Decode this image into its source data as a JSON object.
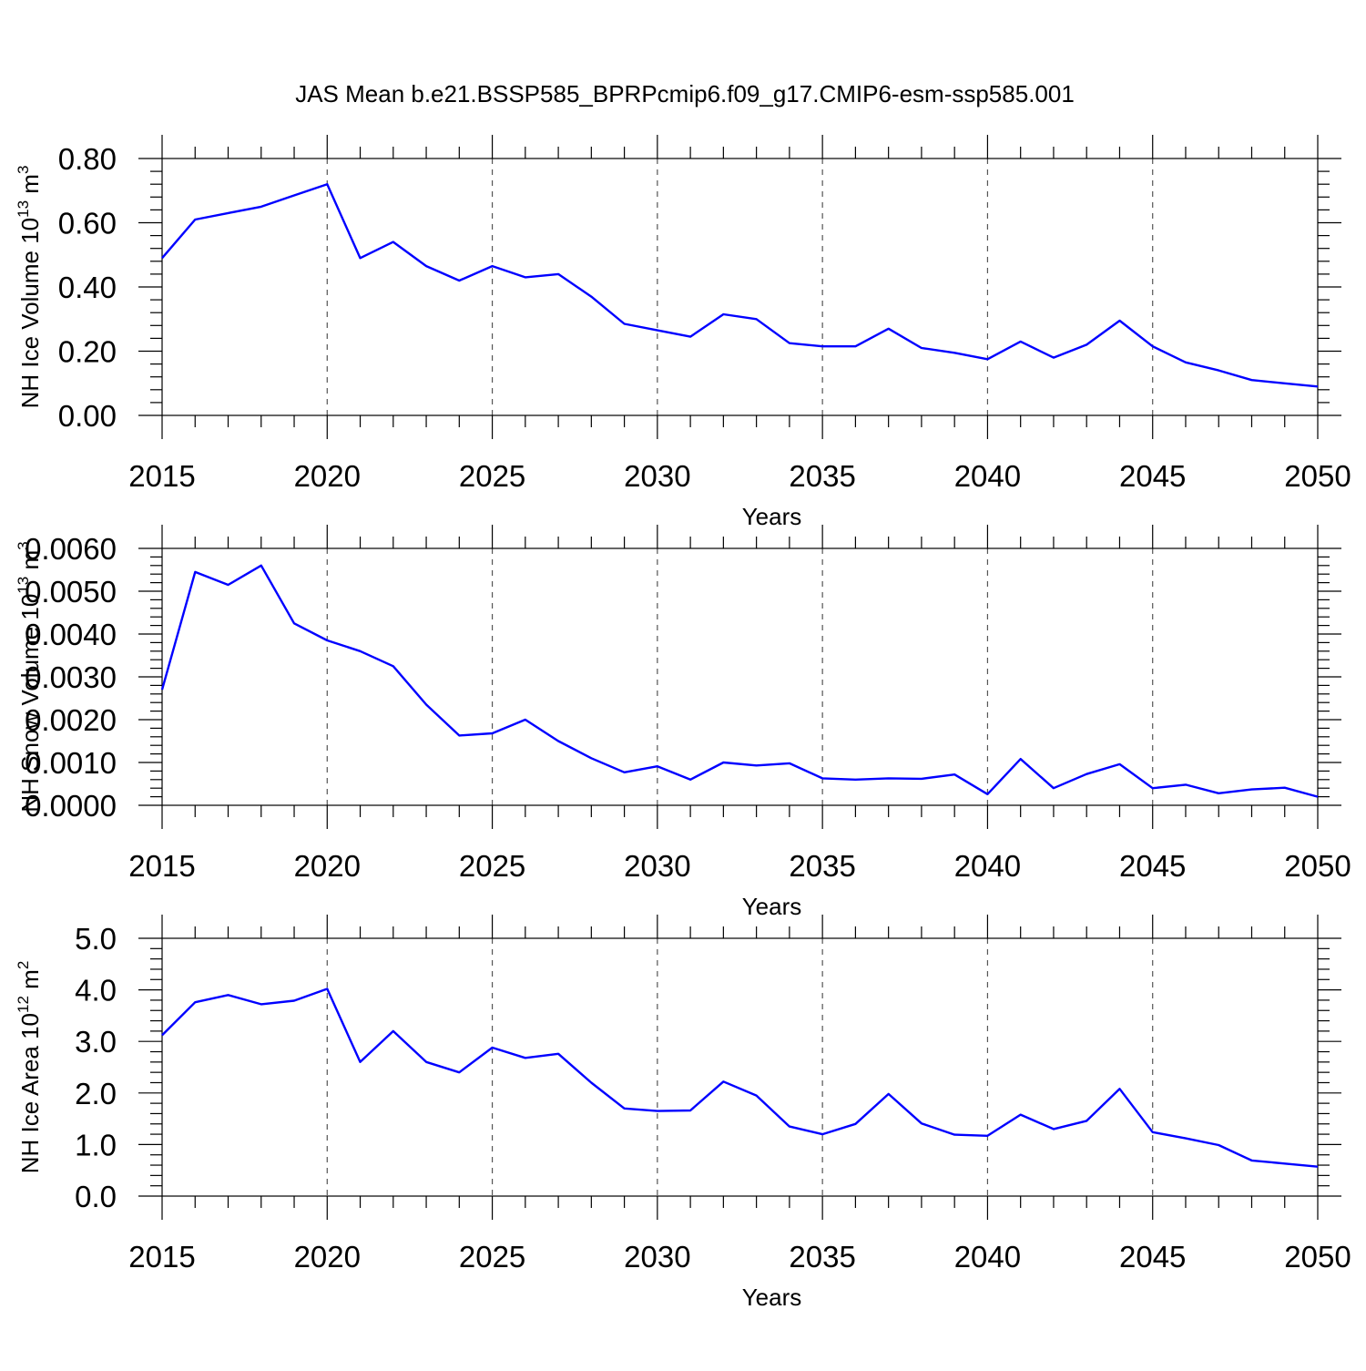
{
  "title": "JAS Mean b.e21.BSSP585_BPRPcmip6.f09_g17.CMIP6-esm-ssp585.001",
  "line_color": "#0000ff",
  "chart_data": [
    {
      "type": "line",
      "title": "JAS Mean b.e21.BSSP585_BPRPcmip6.f09_g17.CMIP6-esm-ssp585.001",
      "xlabel": "Years",
      "ylabel": "NH Ice Volume 10",
      "ylabel_sup": "13",
      "ylabel_unit": "m",
      "ylabel_unit_sup": "3",
      "xlim": [
        2015,
        2050
      ],
      "ylim": [
        0,
        0.8
      ],
      "yticks": [
        "0.00",
        "0.20",
        "0.40",
        "0.60",
        "0.80"
      ],
      "xticks": [
        "2015",
        "2020",
        "2025",
        "2030",
        "2035",
        "2040",
        "2045",
        "2050"
      ],
      "grid": "vertical dashed at major x ticks",
      "x": [
        2015,
        2016,
        2017,
        2018,
        2019,
        2020,
        2021,
        2022,
        2023,
        2024,
        2025,
        2026,
        2027,
        2028,
        2029,
        2030,
        2031,
        2032,
        2033,
        2034,
        2035,
        2036,
        2037,
        2038,
        2039,
        2040,
        2041,
        2042,
        2043,
        2044,
        2045,
        2046,
        2047,
        2048,
        2049,
        2050
      ],
      "values": [
        0.49,
        0.61,
        0.63,
        0.65,
        0.685,
        0.72,
        0.49,
        0.54,
        0.465,
        0.42,
        0.465,
        0.43,
        0.44,
        0.37,
        0.285,
        0.265,
        0.245,
        0.315,
        0.3,
        0.225,
        0.215,
        0.215,
        0.27,
        0.21,
        0.195,
        0.175,
        0.23,
        0.18,
        0.22,
        0.295,
        0.215,
        0.165,
        0.14,
        0.11,
        0.1,
        0.09
      ]
    },
    {
      "type": "line",
      "xlabel": "Years",
      "ylabel": "NH Snow Volume 10",
      "ylabel_sup": "13",
      "ylabel_unit": "m",
      "ylabel_unit_sup": "3",
      "xlim": [
        2015,
        2050
      ],
      "ylim": [
        0,
        0.006
      ],
      "yticks": [
        "0.0000",
        "0.0010",
        "0.0020",
        "0.0030",
        "0.0040",
        "0.0050",
        "0.0060"
      ],
      "xticks": [
        "2015",
        "2020",
        "2025",
        "2030",
        "2035",
        "2040",
        "2045",
        "2050"
      ],
      "grid": "vertical dashed at major x ticks",
      "x": [
        2015,
        2016,
        2017,
        2018,
        2019,
        2020,
        2021,
        2022,
        2023,
        2024,
        2025,
        2026,
        2027,
        2028,
        2029,
        2030,
        2031,
        2032,
        2033,
        2034,
        2035,
        2036,
        2037,
        2038,
        2039,
        2040,
        2041,
        2042,
        2043,
        2044,
        2045,
        2046,
        2047,
        2048,
        2049,
        2050
      ],
      "values": [
        0.0027,
        0.00545,
        0.00515,
        0.0056,
        0.00425,
        0.00385,
        0.0036,
        0.00325,
        0.00235,
        0.00163,
        0.00168,
        0.002,
        0.0015,
        0.0011,
        0.00077,
        0.00091,
        0.0006,
        0.001,
        0.00093,
        0.00098,
        0.00063,
        0.0006,
        0.00063,
        0.00062,
        0.00072,
        0.00026,
        0.00108,
        0.0004,
        0.00073,
        0.00096,
        0.0004,
        0.00048,
        0.00028,
        0.00037,
        0.00041,
        0.0002
      ]
    },
    {
      "type": "line",
      "xlabel": "Years",
      "ylabel": "NH Ice Area 10",
      "ylabel_sup": "12",
      "ylabel_unit": "m",
      "ylabel_unit_sup": "2",
      "xlim": [
        2015,
        2050
      ],
      "ylim": [
        0,
        5
      ],
      "yticks": [
        "0.0",
        "1.0",
        "2.0",
        "3.0",
        "4.0",
        "5.0"
      ],
      "xticks": [
        "2015",
        "2020",
        "2025",
        "2030",
        "2035",
        "2040",
        "2045",
        "2050"
      ],
      "grid": "vertical dashed at major x ticks",
      "x": [
        2015,
        2016,
        2017,
        2018,
        2019,
        2020,
        2021,
        2022,
        2023,
        2024,
        2025,
        2026,
        2027,
        2028,
        2029,
        2030,
        2031,
        2032,
        2033,
        2034,
        2035,
        2036,
        2037,
        2038,
        2039,
        2040,
        2041,
        2042,
        2043,
        2044,
        2045,
        2046,
        2047,
        2048,
        2049,
        2050
      ],
      "values": [
        3.12,
        3.76,
        3.9,
        3.72,
        3.79,
        4.02,
        2.6,
        3.2,
        2.6,
        2.4,
        2.88,
        2.68,
        2.76,
        2.2,
        1.7,
        1.65,
        1.66,
        2.22,
        1.95,
        1.35,
        1.2,
        1.4,
        1.98,
        1.41,
        1.19,
        1.17,
        1.58,
        1.3,
        1.46,
        2.08,
        1.24,
        1.12,
        0.99,
        0.69,
        0.63,
        0.57
      ]
    }
  ]
}
